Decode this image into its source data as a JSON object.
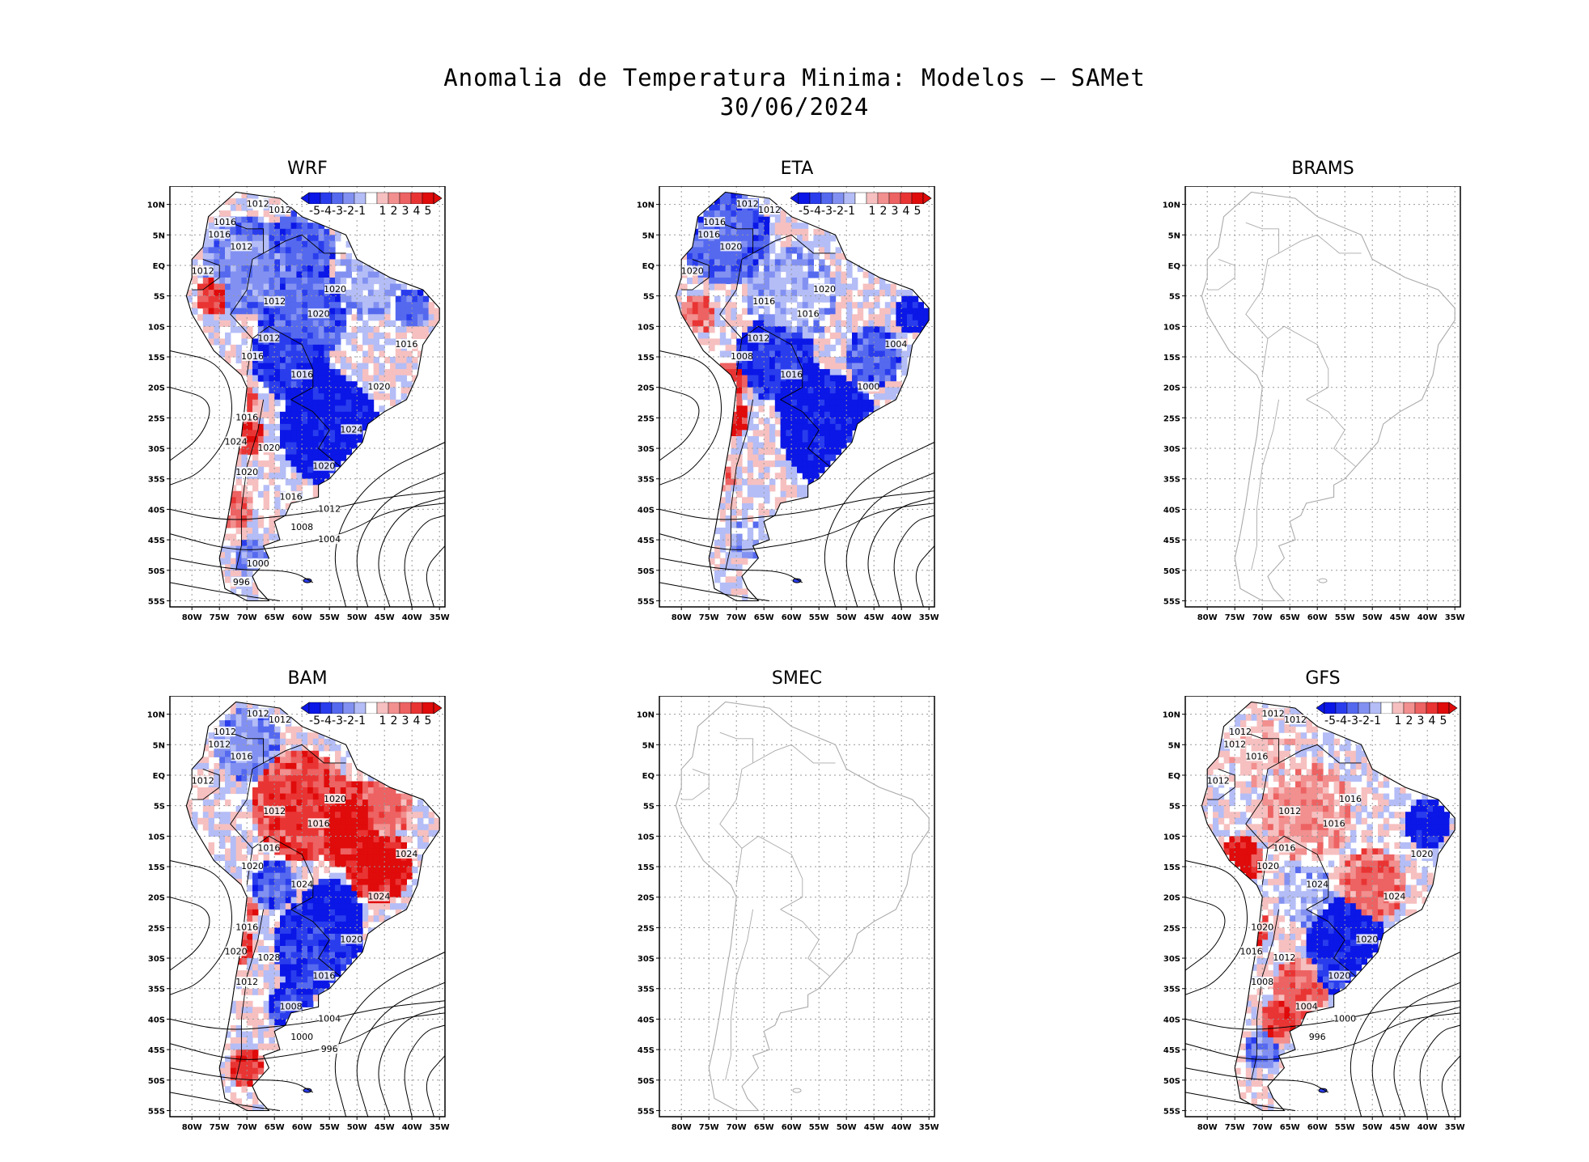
{
  "title": {
    "line1": "Anomalia de Temperatura Minima: Modelos – SAMet",
    "line2": "30/06/2024"
  },
  "colors": {
    "neg5": "#0b17e6",
    "neg4": "#2a3ded",
    "neg3": "#5569ef",
    "neg2": "#8291f1",
    "neg1": "#b4bdf6",
    "zero": "#ffffff",
    "pos1": "#f6c0c0",
    "pos2": "#f28f8f",
    "pos3": "#ed6262",
    "pos4": "#e93434",
    "pos5": "#e00b0b",
    "land_outline": "#000000",
    "empty_outline": "#aaaaaa",
    "grid": "#999999"
  },
  "colorbar": {
    "ticks": [
      "-5",
      "-4",
      "-3",
      "-2",
      "-1",
      "1",
      "2",
      "3",
      "4",
      "5"
    ]
  },
  "axes": {
    "lat_labels": [
      "10N",
      "5N",
      "EQ",
      "5S",
      "10S",
      "15S",
      "20S",
      "25S",
      "30S",
      "35S",
      "40S",
      "45S",
      "50S",
      "55S"
    ],
    "lon_labels": [
      "80W",
      "75W",
      "70W",
      "65W",
      "60W",
      "55W",
      "50W",
      "45W",
      "40W",
      "35W"
    ]
  },
  "panels": [
    {
      "key": "wrf",
      "name": "WRF",
      "has_data": true,
      "contours": [
        "1012",
        "1012",
        "1016",
        "1016",
        "1012",
        "1012",
        "1012",
        "1020",
        "1020",
        "1012",
        "1016",
        "1016",
        "1016",
        "1020",
        "1016",
        "1024",
        "1024",
        "1020",
        "1020",
        "1020",
        "1016",
        "1012",
        "1008",
        "1004",
        "1000",
        "996"
      ]
    },
    {
      "key": "eta",
      "name": "ETA",
      "has_data": true,
      "contours": [
        "1012",
        "1012",
        "1016",
        "1016",
        "1020",
        "1020",
        "1016",
        "1020",
        "1016",
        "1012",
        "1008",
        "1004",
        "1016",
        "1000"
      ]
    },
    {
      "key": "brams",
      "name": "BRAMS",
      "has_data": false,
      "contours": []
    },
    {
      "key": "bam",
      "name": "BAM",
      "has_data": true,
      "contours": [
        "1012",
        "1012",
        "1012",
        "1012",
        "1016",
        "1012",
        "1012",
        "1020",
        "1016",
        "1016",
        "1020",
        "1024",
        "1024",
        "1024",
        "1016",
        "1020",
        "1020",
        "1028",
        "1016",
        "1012",
        "1008",
        "1004",
        "1000",
        "996"
      ]
    },
    {
      "key": "smec",
      "name": "SMEC",
      "has_data": false,
      "contours": []
    },
    {
      "key": "gfs",
      "name": "GFS",
      "has_data": true,
      "contours": [
        "1012",
        "1012",
        "1012",
        "1012",
        "1016",
        "1012",
        "1012",
        "1016",
        "1016",
        "1016",
        "1020",
        "1020",
        "1024",
        "1024",
        "1020",
        "1020",
        "1016",
        "1012",
        "1020",
        "1008",
        "1004",
        "1000",
        "996"
      ]
    }
  ]
}
